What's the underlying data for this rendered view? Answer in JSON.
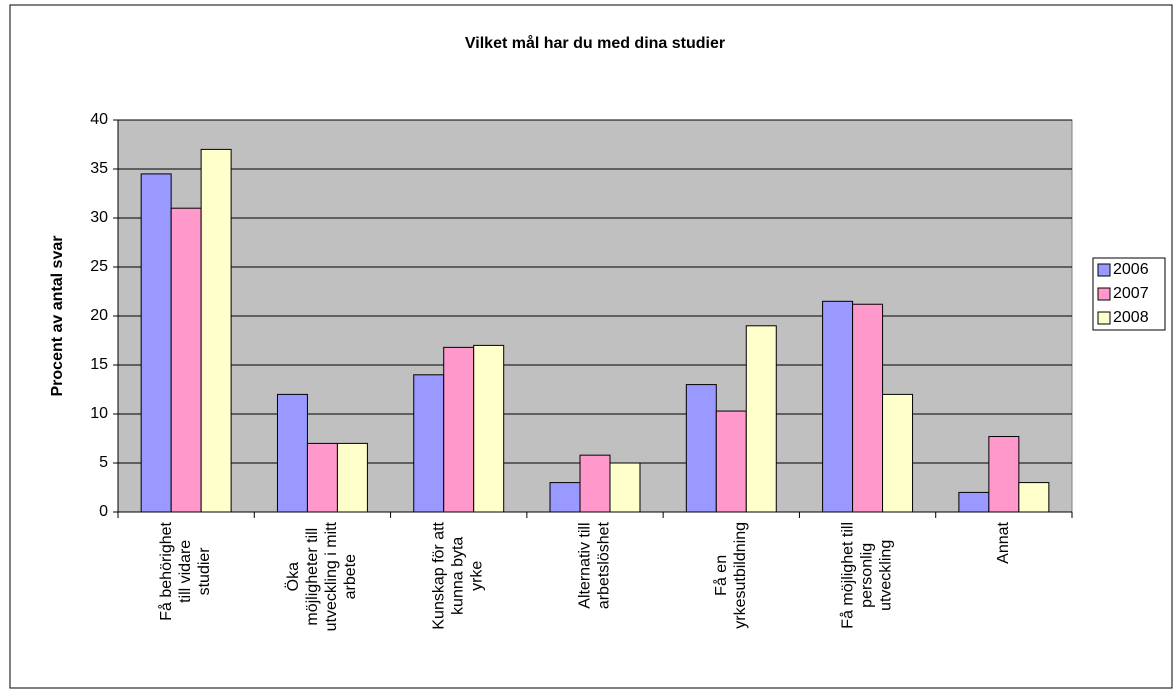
{
  "chart_data": {
    "type": "bar",
    "title": "Vilket mål har du med dina studier",
    "y_label": "Procent av antal svar",
    "categories": [
      "Få behörighet\ntill vidare\nstudier",
      "Öka\nmöjligheter till\nutveckling i mitt\narbete",
      "Kunskap för att\nkunna byta\nyrke",
      "Alternativ till\narbetslöshet",
      "Få en\nyrkesutbildning",
      "Få möjlighet till\npersonlig\nutveckling",
      "Annat"
    ],
    "series": [
      {
        "name": "2006",
        "color": "#9999ff",
        "values": [
          34.5,
          12,
          14,
          3,
          13,
          21.5,
          2
        ]
      },
      {
        "name": "2007",
        "color": "#ff99cc",
        "values": [
          31,
          7,
          16.8,
          5.8,
          10.3,
          21.2,
          7.7
        ]
      },
      {
        "name": "2008",
        "color": "#ffffcc",
        "values": [
          37,
          7,
          17,
          5,
          19,
          12,
          3
        ]
      }
    ],
    "ylim": [
      0,
      40
    ],
    "yticks": [
      0,
      5,
      10,
      15,
      20,
      25,
      30,
      35,
      40
    ],
    "grid": true,
    "legend": "right"
  }
}
